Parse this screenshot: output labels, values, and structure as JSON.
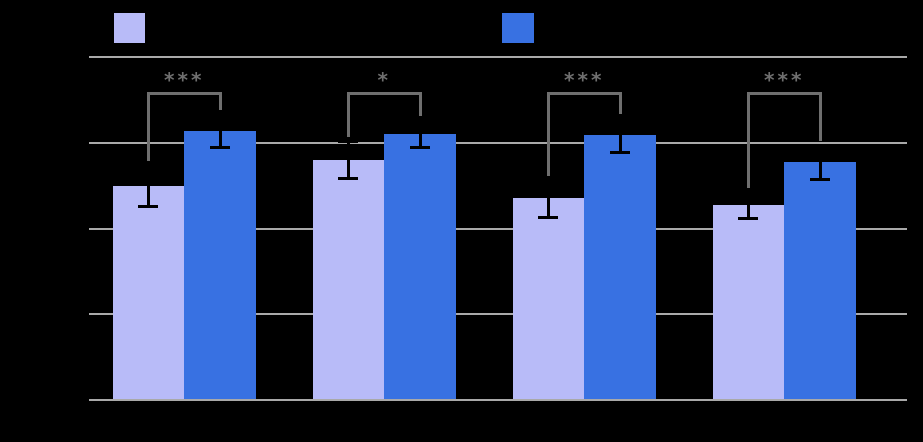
{
  "figure": {
    "background_color": "#000000",
    "gridline_color": "#a9a9a9",
    "annotation_color": "#6f6f6f",
    "error_bar_color": "#000000",
    "legend": {
      "swatches": [
        {
          "name": "series-1-swatch",
          "color": "#b8bbf8"
        },
        {
          "name": "series-2-swatch",
          "color": "#3871e2"
        }
      ],
      "labels_visible": false
    }
  },
  "chart_data": {
    "type": "bar",
    "title": "",
    "categories": [
      "group-1",
      "group-2",
      "group-3",
      "group-4"
    ],
    "x_tick_labels_visible": false,
    "y_tick_labels_visible": false,
    "y_axis_units": "gridline units (0 = baseline, 1 per gridline)",
    "ylim": [
      0,
      4
    ],
    "y_gridlines": [
      0,
      1,
      2,
      3,
      4
    ],
    "grid": true,
    "legend_position": "top",
    "series": [
      {
        "name": "series-1-light-purple",
        "color": "#b8bbf8",
        "values": [
          2.5,
          2.8,
          2.35,
          2.27
        ],
        "errors": [
          0.24,
          0.22,
          0.22,
          0.15
        ]
      },
      {
        "name": "series-2-blue",
        "color": "#3871e2",
        "values": [
          3.14,
          3.1,
          3.09,
          2.77
        ],
        "errors": [
          0.2,
          0.16,
          0.2,
          0.2
        ]
      }
    ],
    "significance_markers": [
      "***",
      "*",
      "***",
      "***"
    ]
  }
}
